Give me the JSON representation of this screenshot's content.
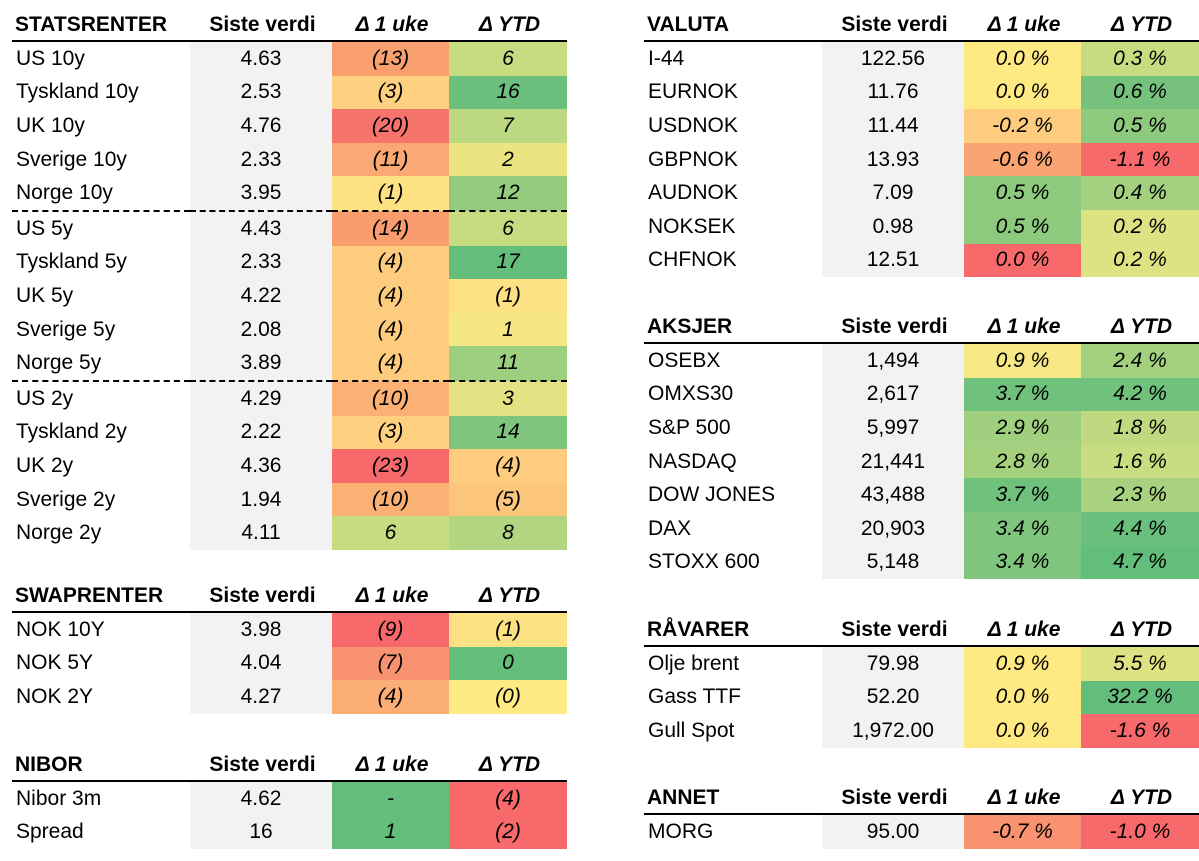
{
  "tables": [
    {
      "id": "t-stat",
      "name": "statsrenter-table",
      "title": "STATSRENTER",
      "headers": [
        "Siste verdi",
        "Δ 1 uke",
        "Δ YTD"
      ],
      "separators_before": [
        5,
        10
      ],
      "rows": [
        {
          "name": "US 10y",
          "value": "4.63",
          "d1": "(13)",
          "d1_color": "#f9a06e",
          "ytd": "6",
          "ytd_color": "#c7dc80"
        },
        {
          "name": "Tyskland 10y",
          "value": "2.53",
          "d1": "(3)",
          "d1_color": "#fdd17f",
          "ytd": "16",
          "ytd_color": "#6cbf7c"
        },
        {
          "name": "UK 10y",
          "value": "4.76",
          "d1": "(20)",
          "d1_color": "#f7746c",
          "ytd": "7",
          "ytd_color": "#bcd881"
        },
        {
          "name": "Sverige 10y",
          "value": "2.33",
          "d1": "(11)",
          "d1_color": "#faa974",
          "ytd": "2",
          "ytd_color": "#eae582"
        },
        {
          "name": "Norge 10y",
          "value": "3.95",
          "d1": "(1)",
          "d1_color": "#fee182",
          "ytd": "12",
          "ytd_color": "#93cc7e"
        },
        {
          "name": "US 5y",
          "value": "4.43",
          "d1": "(14)",
          "d1_color": "#f99c6e",
          "ytd": "6",
          "ytd_color": "#c7dc80"
        },
        {
          "name": "Tyskland 5y",
          "value": "2.33",
          "d1": "(4)",
          "d1_color": "#fdcc7e",
          "ytd": "17",
          "ytd_color": "#63be7b"
        },
        {
          "name": "UK 5y",
          "value": "4.22",
          "d1": "(4)",
          "d1_color": "#fdcc7e",
          "ytd": "(1)",
          "ytd_color": "#fee182"
        },
        {
          "name": "Sverige 5y",
          "value": "2.08",
          "d1": "(4)",
          "d1_color": "#fdcc7e",
          "ytd": "1",
          "ytd_color": "#f5e884"
        },
        {
          "name": "Norge 5y",
          "value": "3.89",
          "d1": "(4)",
          "d1_color": "#fdcc7e",
          "ytd": "11",
          "ytd_color": "#9ccf7f"
        },
        {
          "name": "US 2y",
          "value": "4.29",
          "d1": "(10)",
          "d1_color": "#fbb174",
          "ytd": "3",
          "ytd_color": "#e3e383"
        },
        {
          "name": "Tyskland 2y",
          "value": "2.22",
          "d1": "(3)",
          "d1_color": "#fdd17f",
          "ytd": "14",
          "ytd_color": "#80c57d"
        },
        {
          "name": "UK 2y",
          "value": "4.36",
          "d1": "(23)",
          "d1_color": "#f8696b",
          "ytd": "(4)",
          "ytd_color": "#fdcc7e"
        },
        {
          "name": "Sverige 2y",
          "value": "1.94",
          "d1": "(10)",
          "d1_color": "#fbb174",
          "ytd": "(5)",
          "ytd_color": "#fcc57c"
        },
        {
          "name": "Norge 2y",
          "value": "4.11",
          "d1": "6",
          "d1_color": "#c7dc80",
          "ytd": "8",
          "ytd_color": "#b1d580"
        }
      ]
    },
    {
      "id": "t-swap",
      "name": "swaprenter-table",
      "title": "SWAPRENTER",
      "headers": [
        "Siste verdi",
        "Δ 1 uke",
        "Δ YTD"
      ],
      "separators_before": [],
      "rows": [
        {
          "name": "NOK 10Y",
          "value": "3.98",
          "d1": "(9)",
          "d1_color": "#f8696b",
          "ytd": "(1)",
          "ytd_color": "#fee182"
        },
        {
          "name": "NOK 5Y",
          "value": "4.04",
          "d1": "(7)",
          "d1_color": "#f99270",
          "ytd": "0",
          "ytd_color": "#63be7b"
        },
        {
          "name": "NOK 2Y",
          "value": "4.27",
          "d1": "(4)",
          "d1_color": "#fbae76",
          "ytd": "(0)",
          "ytd_color": "#feeb84"
        }
      ]
    },
    {
      "id": "t-nibor",
      "name": "nibor-table",
      "title": "NIBOR",
      "headers": [
        "Siste verdi",
        "Δ 1 uke",
        "Δ YTD"
      ],
      "separators_before": [],
      "rows": [
        {
          "name": "Nibor 3m",
          "value": "4.62",
          "d1": "-",
          "d1_color": "#63be7b",
          "ytd": "(4)",
          "ytd_color": "#f8696b"
        },
        {
          "name": "Spread",
          "value": "16",
          "d1": "1",
          "d1_color": "#63be7b",
          "ytd": "(2)",
          "ytd_color": "#f8696b"
        }
      ]
    },
    {
      "id": "t-valuta",
      "name": "valuta-table",
      "title": "VALUTA",
      "headers": [
        "Siste verdi",
        "Δ 1 uke",
        "Δ YTD"
      ],
      "separators_before": [],
      "rows": [
        {
          "name": "I-44",
          "value": "122.56",
          "d1": "0.0 %",
          "d1_color": "#fee983",
          "ytd": "0.3 %",
          "ytd_color": "#c7dc80"
        },
        {
          "name": "EURNOK",
          "value": "11.76",
          "d1": "0.0 %",
          "d1_color": "#fee983",
          "ytd": "0.6 %",
          "ytd_color": "#76c27d"
        },
        {
          "name": "USDNOK",
          "value": "11.44",
          "d1": "-0.2 %",
          "d1_color": "#fdcc7e",
          "ytd": "0.5 %",
          "ytd_color": "#8dca7e"
        },
        {
          "name": "GBPNOK",
          "value": "13.93",
          "d1": "-0.6 %",
          "d1_color": "#faa472",
          "ytd": "-1.1 %",
          "ytd_color": "#f8696b"
        },
        {
          "name": "AUDNOK",
          "value": "7.09",
          "d1": "0.5 %",
          "d1_color": "#8dca7e",
          "ytd": "0.4 %",
          "ytd_color": "#a3d17f"
        },
        {
          "name": "NOKSEK",
          "value": "0.98",
          "d1": "0.5 %",
          "d1_color": "#8dca7e",
          "ytd": "0.2 %",
          "ytd_color": "#dde283"
        },
        {
          "name": "CHFNOK",
          "value": "12.51",
          "d1": "0.0 %",
          "d1_color": "#f8696b",
          "ytd": "0.2 %",
          "ytd_color": "#dde283"
        }
      ]
    },
    {
      "id": "t-aksjer",
      "name": "aksjer-table",
      "title": "AKSJER",
      "headers": [
        "Siste verdi",
        "Δ 1 uke",
        "Δ YTD"
      ],
      "separators_before": [],
      "rows": [
        {
          "name": "OSEBX",
          "value": "1,494",
          "d1": "0.9 %",
          "d1_color": "#f6e884",
          "ytd": "2.4 %",
          "ytd_color": "#a3d17f"
        },
        {
          "name": "OMXS30",
          "value": "2,617",
          "d1": "3.7 %",
          "d1_color": "#6fc17c",
          "ytd": "4.2 %",
          "ytd_color": "#6fc17c"
        },
        {
          "name": "S&P 500",
          "value": "5,997",
          "d1": "2.9 %",
          "d1_color": "#a0d07f",
          "ytd": "1.8 %",
          "ytd_color": "#c0d981"
        },
        {
          "name": "NASDAQ",
          "value": "21,441",
          "d1": "2.8 %",
          "d1_color": "#a5d17f",
          "ytd": "1.6 %",
          "ytd_color": "#c8dc81"
        },
        {
          "name": "DOW JONES",
          "value": "43,488",
          "d1": "3.7 %",
          "d1_color": "#6fc17c",
          "ytd": "2.3 %",
          "ytd_color": "#a8d27f"
        },
        {
          "name": "DAX",
          "value": "20,903",
          "d1": "3.4 %",
          "d1_color": "#7fc57d",
          "ytd": "4.4 %",
          "ytd_color": "#68c07c"
        },
        {
          "name": "STOXX 600",
          "value": "5,148",
          "d1": "3.4 %",
          "d1_color": "#7fc57d",
          "ytd": "4.7 %",
          "ytd_color": "#63be7b"
        }
      ]
    },
    {
      "id": "t-ravarer",
      "name": "ravarer-table",
      "title": "RÅVARER",
      "headers": [
        "Siste verdi",
        "Δ 1 uke",
        "Δ YTD"
      ],
      "separators_before": [],
      "rows": [
        {
          "name": "Olje brent",
          "value": "79.98",
          "d1": "0.9 %",
          "d1_color": "#fee983",
          "ytd": "5.5 %",
          "ytd_color": "#dfe283"
        },
        {
          "name": "Gass TTF",
          "value": "52.20",
          "d1": "0.0 %",
          "d1_color": "#fee983",
          "ytd": "32.2 %",
          "ytd_color": "#63be7b"
        },
        {
          "name": "Gull Spot",
          "value": "1,972.00",
          "d1": "0.0 %",
          "d1_color": "#fee983",
          "ytd": "-1.6 %",
          "ytd_color": "#f8696b"
        }
      ]
    },
    {
      "id": "t-annet",
      "name": "annet-table",
      "title": "ANNET",
      "headers": [
        "Siste verdi",
        "Δ 1 uke",
        "Δ YTD"
      ],
      "separators_before": [],
      "rows": [
        {
          "name": "MORG",
          "value": "95.00",
          "d1": "-0.7 %",
          "d1_color": "#f99270",
          "ytd": "-1.0 %",
          "ytd_color": "#f8696b"
        }
      ]
    }
  ]
}
